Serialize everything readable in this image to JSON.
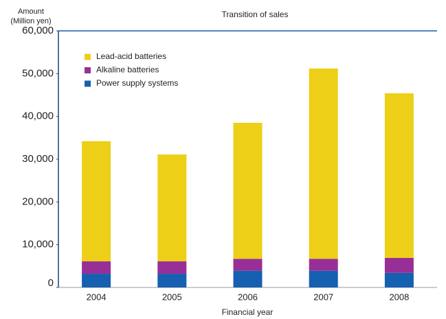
{
  "chart_data": {
    "type": "stacked-bar",
    "title": "Transition of sales",
    "y_label": [
      "Amount",
      "(Million yen)"
    ],
    "x_label": "Financial year",
    "categories": [
      "2004",
      "2005",
      "2006",
      "2007",
      "2008"
    ],
    "series": [
      {
        "name": "Power supply systems",
        "color": "#1560b0",
        "values": [
          3200,
          3200,
          3900,
          3900,
          3400
        ]
      },
      {
        "name": "Alkaline batteries",
        "color": "#982f98",
        "values": [
          2900,
          2900,
          2800,
          2800,
          3500
        ]
      },
      {
        "name": "Lead-acid batteries",
        "color": "#edcf18",
        "values": [
          28100,
          25000,
          31800,
          44500,
          38500
        ]
      }
    ],
    "ylim": [
      0,
      60000
    ],
    "yticks": [
      0,
      {
        "value": 10000,
        "label": "10,000"
      },
      {
        "value": 20000,
        "label": "20,000"
      },
      {
        "value": 30000,
        "label": "30,000"
      },
      {
        "value": 40000,
        "label": "40,000"
      },
      {
        "value": 50000,
        "label": "50,000"
      },
      {
        "value": 60000,
        "label": "60,000"
      }
    ],
    "legend": "top-left"
  }
}
